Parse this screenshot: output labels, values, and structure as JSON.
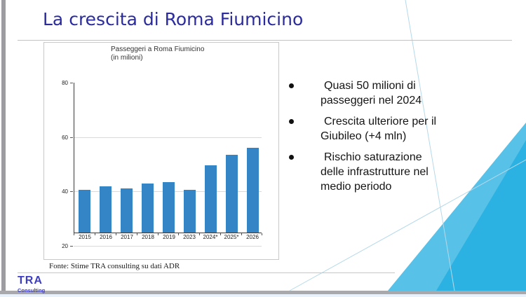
{
  "slide": {
    "title": "La crescita di Roma Fiumicino",
    "bullets": [
      {
        "lines": [
          "Quasi 50 milioni di",
          "passeggeri nel 2024"
        ]
      },
      {
        "lines": [
          "Crescita ulteriore per il",
          "Giubileo (+4 mln)"
        ]
      },
      {
        "lines": [
          "Rischio saturazione",
          "delle infrastrutture nel",
          "medio periodo"
        ]
      }
    ],
    "footer_source": "Fonte: Stime TRA consulting su dati ADR",
    "logo": {
      "name": "TRA",
      "sub": "Consulting"
    }
  },
  "chart_data": {
    "type": "bar",
    "title": "Passeggeri a Roma Fiumicino",
    "subtitle": "(in milioni)",
    "categories": [
      "2015",
      "2016",
      "2017",
      "2018",
      "2019",
      "2023",
      "2024*",
      "2025*",
      "2026"
    ],
    "values": [
      40.5,
      42,
      41,
      43,
      43.5,
      40.5,
      49.5,
      53.5,
      56
    ],
    "ylim": [
      20,
      80
    ],
    "yticks": [
      20,
      40,
      60,
      80
    ],
    "bar_baseline": 25,
    "grid": true,
    "legend": false,
    "xlabel": "",
    "ylabel": "",
    "bar_color": "#3385c6"
  },
  "colors": {
    "title_navy": "#2b2b9c",
    "bar_blue": "#3385c6",
    "teal_light": "#57c1e8",
    "teal_dark": "#2cb2e2",
    "thin_line_blue": "#b5d9ea",
    "underline_blue": "#9fcde2",
    "logo_blue": "#3d3dc4",
    "edge_gray": "#a9a9ad"
  }
}
